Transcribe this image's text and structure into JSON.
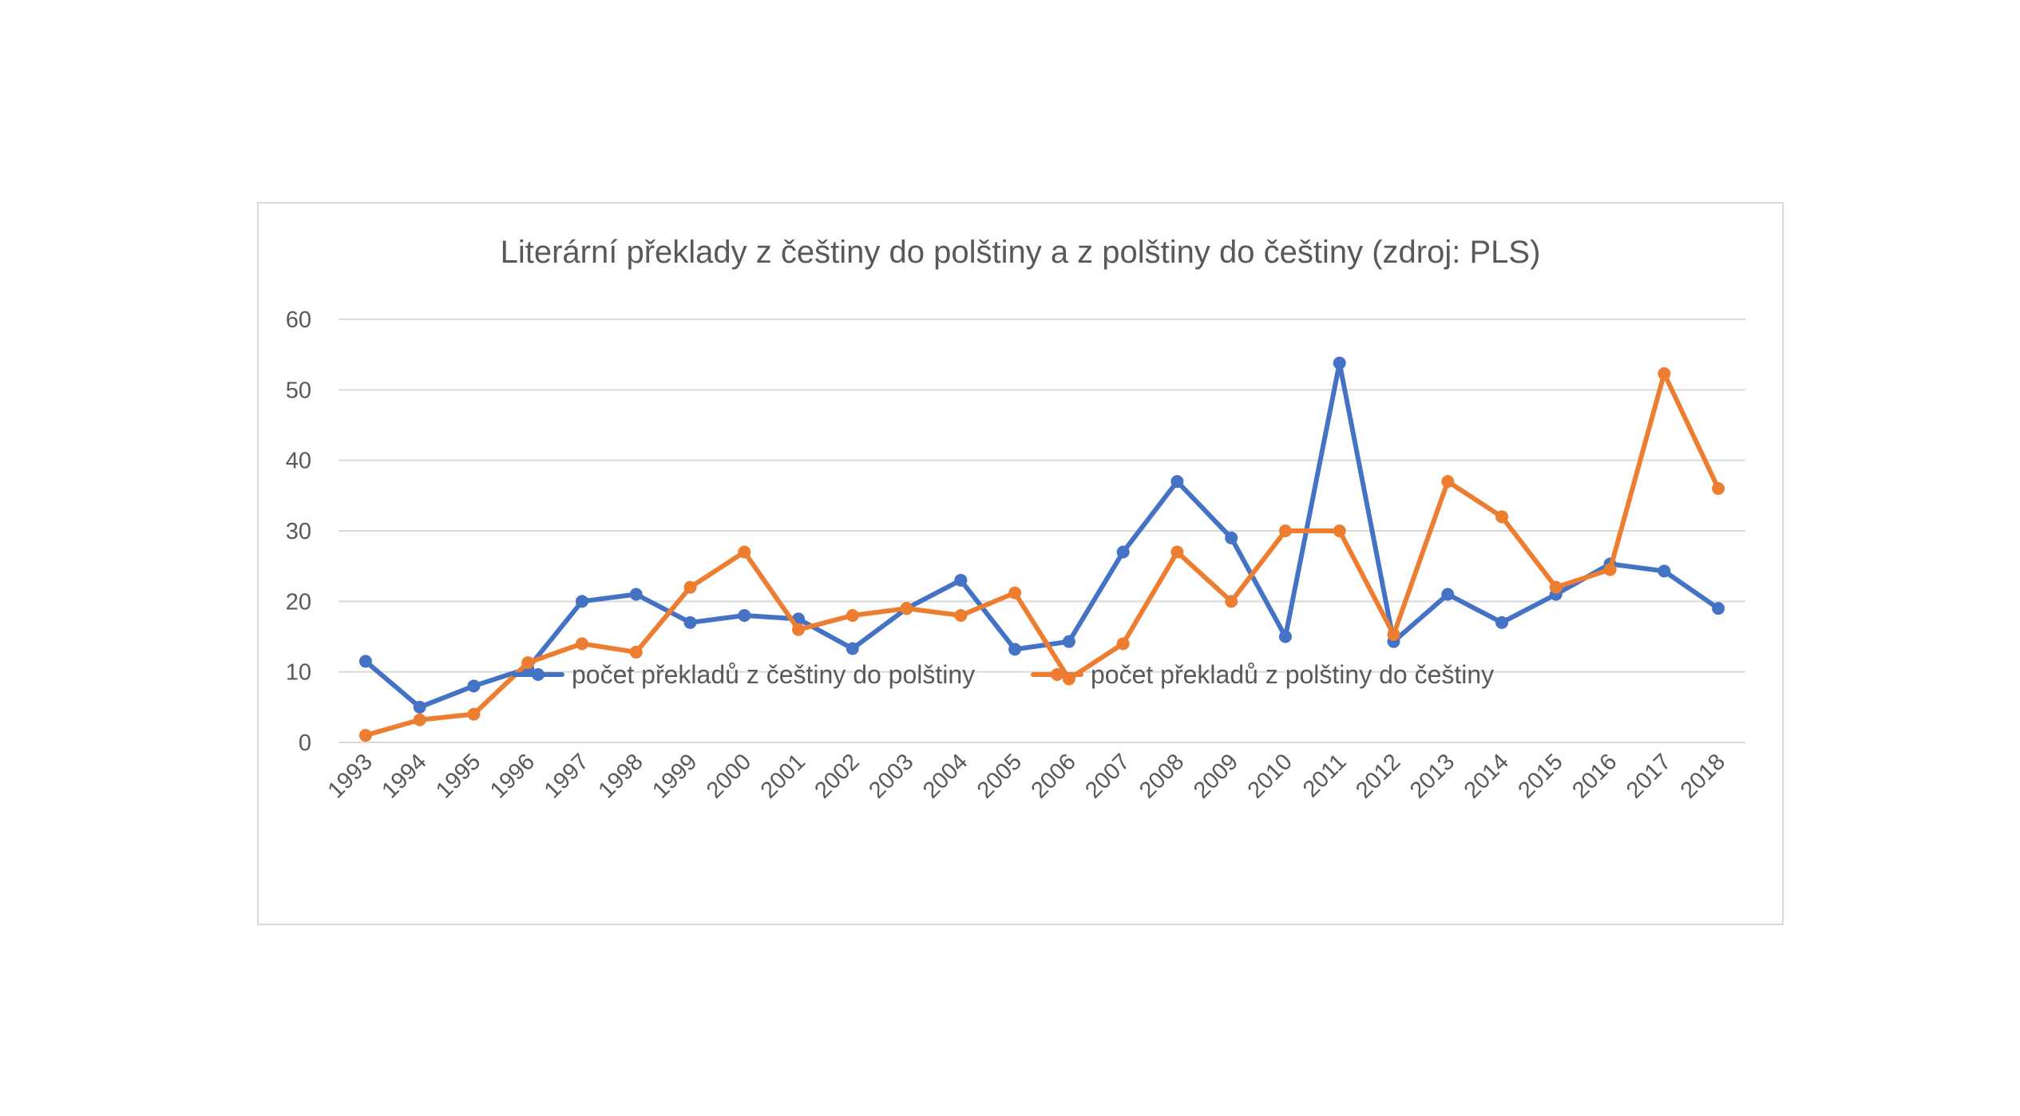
{
  "chart_data": {
    "type": "line",
    "title": "Literární překlady z češtiny do polštiny a z polštiny do češtiny (zdroj: PLS)",
    "xlabel": "",
    "ylabel": "",
    "categories": [
      "1993",
      "1994",
      "1995",
      "1996",
      "1997",
      "1998",
      "1999",
      "2000",
      "2001",
      "2002",
      "2003",
      "2004",
      "2005",
      "2006",
      "2007",
      "2008",
      "2009",
      "2010",
      "2011",
      "2012",
      "2013",
      "2014",
      "2015",
      "2016",
      "2017",
      "2018"
    ],
    "ylim": [
      0,
      60
    ],
    "yticks": [
      "0",
      "10",
      "20",
      "30",
      "40",
      "50",
      "60"
    ],
    "grid": true,
    "legend_position": "bottom",
    "series": [
      {
        "name": "počet překladů z češtiny do polštiny",
        "color": "#4472c4",
        "values": [
          11.5,
          5,
          8,
          10.5,
          20,
          21,
          17,
          18,
          17.5,
          13.3,
          19,
          23,
          13.2,
          14.3,
          27,
          37,
          29,
          15,
          53.8,
          14.3,
          21,
          17,
          21,
          25.3,
          24.3,
          19
        ]
      },
      {
        "name": "počet překladů z polštiny do češtiny",
        "color": "#ed7d31",
        "values": [
          1,
          3.2,
          4,
          11.3,
          14,
          12.8,
          22,
          27,
          16,
          18,
          19,
          18,
          21.2,
          9,
          14,
          27,
          20,
          30,
          30,
          15.3,
          37,
          32,
          22,
          24.5,
          52.3,
          36
        ]
      }
    ]
  }
}
